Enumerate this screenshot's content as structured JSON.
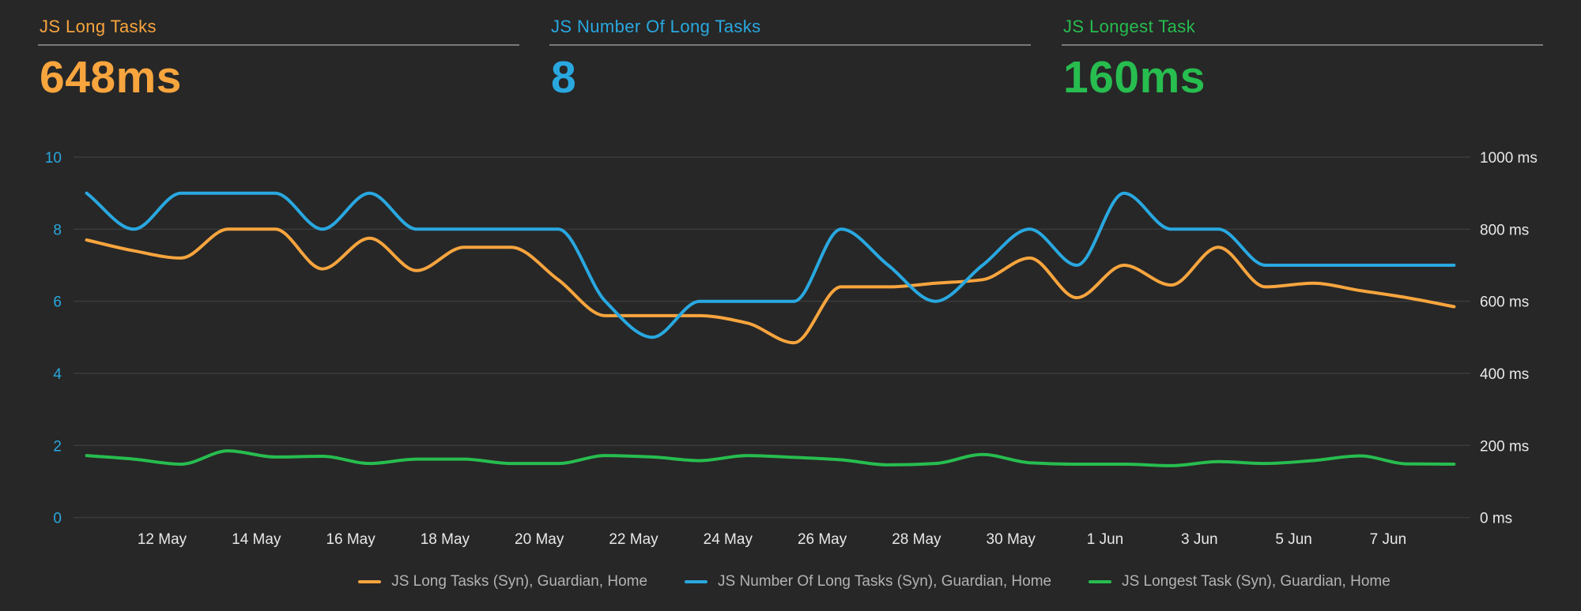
{
  "kpis": [
    {
      "title": "JS Long Tasks",
      "value": "648ms",
      "color": "#f8a53e"
    },
    {
      "title": "JS Number Of Long Tasks",
      "value": "8",
      "color": "#29a8e0"
    },
    {
      "title": "JS Longest Task",
      "value": "160ms",
      "color": "#27bd4f"
    }
  ],
  "legend": {
    "items": [
      {
        "label": "JS Long Tasks (Syn), Guardian, Home",
        "color": "#f8a53e"
      },
      {
        "label": "JS Number Of Long Tasks (Syn), Guardian, Home",
        "color": "#29a8e0"
      },
      {
        "label": "JS Longest Task (Syn), Guardian, Home",
        "color": "#27bd4f"
      }
    ]
  },
  "chart_data": {
    "type": "line",
    "x": [
      "10 May",
      "11 May",
      "12 May",
      "13 May",
      "14 May",
      "15 May",
      "16 May",
      "17 May",
      "18 May",
      "19 May",
      "20 May",
      "21 May",
      "22 May",
      "23 May",
      "24 May",
      "25 May",
      "26 May",
      "27 May",
      "28 May",
      "29 May",
      "30 May",
      "31 May",
      "1 Jun",
      "2 Jun",
      "3 Jun",
      "4 Jun",
      "5 Jun",
      "6 Jun",
      "7 Jun",
      "8 Jun"
    ],
    "series": [
      {
        "id": "js-long-tasks",
        "name": "JS Long Tasks (Syn), Guardian, Home",
        "color": "#f8a53e",
        "axis": "right",
        "unit": "ms",
        "values": [
          770,
          740,
          720,
          800,
          800,
          690,
          775,
          685,
          750,
          750,
          660,
          560,
          560,
          560,
          540,
          485,
          640,
          640,
          650,
          660,
          720,
          610,
          700,
          645,
          750,
          640,
          650,
          630,
          610,
          585
        ]
      },
      {
        "id": "js-number-of-long-tasks",
        "name": "JS Number Of Long Tasks (Syn), Guardian, Home",
        "color": "#29a8e0",
        "axis": "left",
        "unit": "count",
        "values": [
          9,
          8,
          9,
          9,
          9,
          8,
          9,
          8,
          8,
          8,
          8,
          6,
          5,
          6,
          6,
          6,
          8,
          7,
          6,
          7,
          8,
          7,
          9,
          8,
          8,
          7,
          7,
          7,
          7,
          7
        ]
      },
      {
        "id": "js-longest-task",
        "name": "JS Longest Task (Syn), Guardian, Home",
        "color": "#27bd4f",
        "axis": "right",
        "unit": "ms",
        "values": [
          172,
          162,
          148,
          185,
          168,
          170,
          150,
          162,
          162,
          150,
          150,
          172,
          168,
          158,
          172,
          167,
          160,
          146,
          150,
          175,
          152,
          148,
          148,
          144,
          155,
          150,
          158,
          171,
          149,
          148
        ]
      }
    ],
    "y_left": {
      "ticks": [
        10,
        8,
        6,
        4,
        2,
        0
      ],
      "min": 0,
      "max": 10,
      "color": "#29a8e0"
    },
    "y_right": {
      "tick_labels": [
        "1000 ms",
        "800 ms",
        "600 ms",
        "400 ms",
        "200 ms",
        "0 ms"
      ],
      "min": 0,
      "max": 1000
    },
    "x_tick_labels": [
      "12 May",
      "14 May",
      "16 May",
      "18 May",
      "20 May",
      "22 May",
      "24 May",
      "26 May",
      "28 May",
      "30 May",
      "1 Jun",
      "3 Jun",
      "5 Jun",
      "7 Jun"
    ],
    "grid": true,
    "grid_color": "#3b3b3b",
    "axis_text_color": "#e8e8e8",
    "legend_position": "bottom"
  }
}
